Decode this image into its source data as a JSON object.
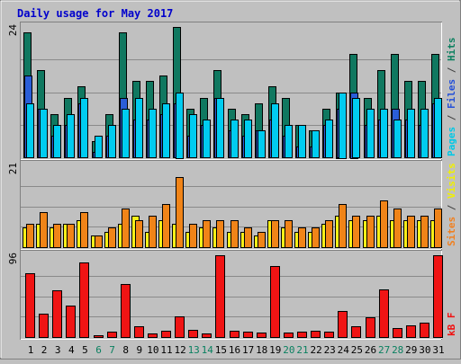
{
  "chart_data": {
    "type": "bar",
    "title": "Daily usage for May 2017",
    "categories": [
      "1",
      "2",
      "3",
      "4",
      "5",
      "6",
      "7",
      "8",
      "9",
      "10",
      "11",
      "12",
      "13",
      "14",
      "15",
      "16",
      "17",
      "18",
      "19",
      "20",
      "21",
      "22",
      "23",
      "24",
      "25",
      "26",
      "27",
      "28",
      "29",
      "30",
      "31"
    ],
    "weekend_days": [
      "6",
      "7",
      "13",
      "14",
      "20",
      "21",
      "27",
      "28"
    ],
    "panels": [
      {
        "id": "top",
        "ymax_label": "24",
        "ymax": 24,
        "right_label": [
          {
            "text": "Pages",
            "color": "#00c8e6"
          },
          {
            "text": " / ",
            "color": "#404040"
          },
          {
            "text": "Files",
            "color": "#2450d8"
          },
          {
            "text": " / ",
            "color": "#404040"
          },
          {
            "text": "Hits",
            "color": "#0d8060"
          }
        ],
        "series": [
          {
            "name": "Hits",
            "color": "#107860",
            "values": [
              23,
              16,
              8,
              11,
              13,
              3,
              8,
              23,
              14,
              14,
              15,
              24,
              9,
              11,
              16,
              9,
              8,
              10,
              13,
              11,
              6,
              5,
              9,
              12,
              19,
              11,
              16,
              19,
              14,
              14,
              19
            ]
          },
          {
            "name": "Files",
            "color": "#2a5ed8",
            "values": [
              15,
              9,
              4,
              6,
              10,
              1,
              4,
              11,
              7,
              7,
              8,
              10,
              4,
              6,
              11,
              5,
              4,
              5,
              7,
              4,
              2,
              2,
              6,
              9,
              12,
              6,
              7,
              9,
              7,
              6,
              10
            ]
          },
          {
            "name": "Pages",
            "color": "#00ccf0",
            "values": [
              10,
              9,
              6,
              8,
              11,
              4,
              6,
              9,
              11,
              9,
              10,
              12,
              8,
              7,
              11,
              7,
              7,
              5,
              10,
              6,
              6,
              5,
              7,
              12,
              11,
              9,
              9,
              7,
              9,
              9,
              11
            ]
          }
        ]
      },
      {
        "id": "middle",
        "ymax_label": "21",
        "ymax": 21,
        "right_label": [
          {
            "text": "Sites",
            "color": "#f08020"
          },
          {
            "text": " / ",
            "color": "#404040"
          },
          {
            "text": "Visits",
            "color": "#f0f000"
          }
        ],
        "series": [
          {
            "name": "Visits",
            "color": "#f8f018",
            "values": [
              5,
              6,
              5,
              6,
              7,
              3,
              4,
              6,
              8,
              4,
              7,
              6,
              4,
              5,
              5,
              4,
              4,
              3,
              7,
              5,
              4,
              4,
              6,
              8,
              7,
              7,
              8,
              7,
              7,
              7,
              7
            ]
          },
          {
            "name": "Sites",
            "color": "#f08418",
            "values": [
              6,
              9,
              6,
              6,
              9,
              3,
              5,
              10,
              7,
              8,
              11,
              18,
              6,
              7,
              7,
              7,
              5,
              4,
              7,
              7,
              5,
              5,
              7,
              11,
              8,
              8,
              12,
              10,
              8,
              8,
              10
            ]
          }
        ]
      },
      {
        "id": "bottom",
        "ymax_label": "96",
        "ymax": 96,
        "right_label": [
          {
            "text": "kB F",
            "color": "#f01010"
          }
        ],
        "series": [
          {
            "name": "kB F",
            "color": "#f01414",
            "values": [
              75,
              27,
              55,
              37,
              88,
              2,
              6,
              62,
              13,
              4,
              7,
              24,
              8,
              4,
              96,
              7,
              6,
              5,
              83,
              5,
              6,
              7,
              6,
              31,
              13,
              23,
              56,
              11,
              14,
              17,
              96
            ]
          }
        ]
      }
    ]
  }
}
